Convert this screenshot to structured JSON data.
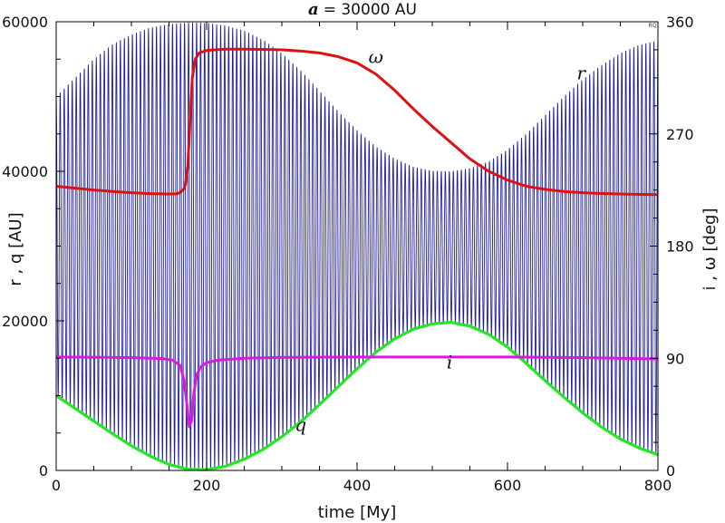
{
  "chart_data": {
    "type": "line",
    "title": "a = 30000 AU",
    "title_var": "a",
    "title_value": "= 30000 AU",
    "xlabel": "time [My]",
    "ylabel_left": "r , q [AU]",
    "ylabel_right": "i , ω [deg]",
    "xlim": [
      0,
      800
    ],
    "ylim_left": [
      0,
      60000
    ],
    "ylim_right": [
      0,
      360
    ],
    "x_ticks": [
      0,
      200,
      400,
      600,
      800
    ],
    "y_left_ticks": [
      0,
      20000,
      40000,
      60000
    ],
    "y_right_ticks": [
      0,
      90,
      180,
      270,
      360
    ],
    "grid": false,
    "legend": "none",
    "mark_id": "RQ",
    "series": [
      {
        "name": "r",
        "axis": "left",
        "color": "#1f1fa0",
        "style": "oscillation between q and envelope",
        "envelope": {
          "x": [
            0,
            25,
            50,
            75,
            100,
            125,
            150,
            175,
            200,
            225,
            250,
            275,
            300,
            325,
            350,
            375,
            400,
            425,
            450,
            475,
            500,
            525,
            550,
            575,
            600,
            625,
            650,
            675,
            700,
            725,
            750,
            775,
            800
          ],
          "y": [
            50000,
            52500,
            55000,
            57000,
            58300,
            59200,
            59700,
            59900,
            59850,
            59500,
            58800,
            57600,
            55800,
            53500,
            50800,
            48000,
            45500,
            43300,
            41700,
            40600,
            40050,
            40000,
            40400,
            41300,
            42900,
            45000,
            47500,
            50000,
            52300,
            54200,
            55800,
            56900,
            57500
          ]
        },
        "periods_count": 150
      },
      {
        "name": "q",
        "axis": "left",
        "color": "#22e822",
        "x": [
          0,
          25,
          50,
          75,
          100,
          125,
          150,
          175,
          200,
          225,
          250,
          275,
          300,
          325,
          350,
          375,
          400,
          425,
          450,
          475,
          500,
          525,
          550,
          575,
          600,
          625,
          650,
          675,
          700,
          725,
          750,
          775,
          800
        ],
        "y": [
          10000,
          8300,
          6600,
          4900,
          3300,
          1900,
          800,
          150,
          100,
          550,
          1500,
          2800,
          4500,
          6500,
          8800,
          11200,
          13600,
          15800,
          17600,
          18900,
          19600,
          19800,
          19300,
          18200,
          16500,
          14300,
          12000,
          9800,
          7700,
          5800,
          4200,
          3000,
          2100
        ]
      },
      {
        "name": "ω",
        "axis": "right",
        "color": "#e01010",
        "x": [
          0,
          25,
          50,
          75,
          100,
          125,
          150,
          160,
          165,
          170,
          172,
          175,
          178,
          181,
          185,
          190,
          200,
          225,
          250,
          275,
          300,
          325,
          350,
          375,
          400,
          425,
          450,
          475,
          500,
          525,
          550,
          575,
          600,
          625,
          650,
          675,
          700,
          725,
          750,
          775,
          800
        ],
        "y": [
          228,
          226.5,
          225,
          223.8,
          222.8,
          222.1,
          221.8,
          222,
          223,
          226,
          230,
          245,
          280,
          315,
          330,
          335,
          337,
          338,
          338,
          337.8,
          337.5,
          336.5,
          335,
          332,
          327,
          318,
          305,
          290,
          276,
          263,
          250,
          240,
          233,
          228,
          225.5,
          223.8,
          222.8,
          222.2,
          221.8,
          221.5,
          221.3
        ]
      },
      {
        "name": "i",
        "axis": "right",
        "color": "#dd18dd",
        "x": [
          0,
          50,
          100,
          140,
          155,
          165,
          170,
          174,
          177,
          180,
          183,
          187,
          192,
          200,
          215,
          250,
          300,
          400,
          500,
          600,
          700,
          800
        ],
        "y": [
          91,
          90.8,
          90.5,
          89.8,
          88.5,
          84,
          72,
          52,
          35,
          40,
          62,
          77,
          83,
          86.5,
          88.5,
          90,
          90.7,
          91,
          91,
          91,
          90.5,
          89.5
        ]
      }
    ],
    "annotations": [
      {
        "text": "ω",
        "x": 425,
        "y_right": 327
      },
      {
        "text": "r",
        "x": 698,
        "y_left": 52300
      },
      {
        "text": "i",
        "x": 523,
        "y_right": 82
      },
      {
        "text": "q",
        "x": 325,
        "y_left": 5300
      }
    ]
  }
}
